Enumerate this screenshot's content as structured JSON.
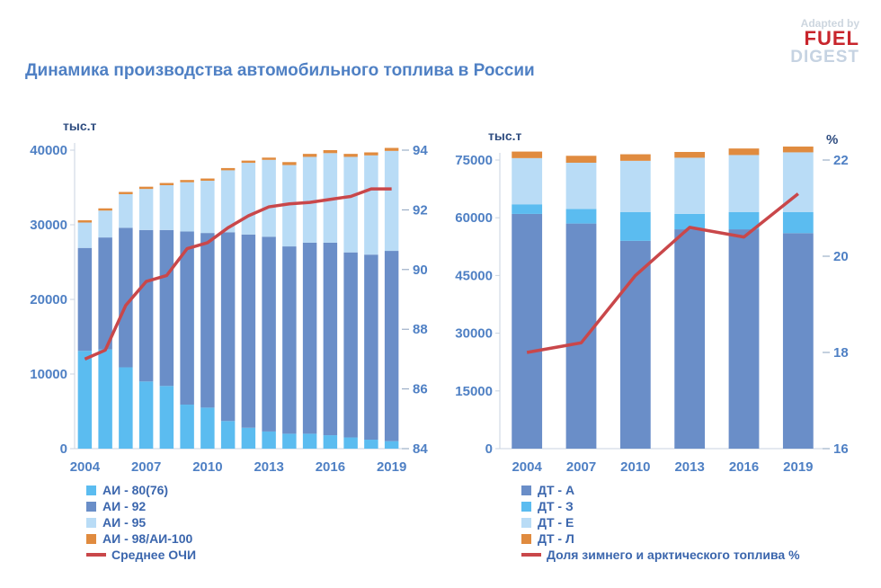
{
  "title": "Динамика производства автомобильного топлива в России",
  "logo": {
    "line1": "Adapted by",
    "line2": "FUEL",
    "line3": "DIGEST"
  },
  "colors": {
    "blue_light": "#5bbcf0",
    "blue_dark": "#6a8ec8",
    "blue_pale": "#b9dcf6",
    "orange": "#e08b3f",
    "red": "#c9474a",
    "axis_text": "#4f80c4"
  },
  "chart_data": [
    {
      "type": "bar",
      "stacked": true,
      "y_unit_label": "тыс.т",
      "categories": [
        "2004",
        "2005",
        "2006",
        "2007",
        "2008",
        "2009",
        "2010",
        "2011",
        "2012",
        "2013",
        "2014",
        "2015",
        "2016",
        "2017",
        "2018",
        "2019"
      ],
      "x_tick_labels": [
        "2004",
        "2007",
        "2010",
        "2013",
        "2016",
        "2019"
      ],
      "ylim": [
        0,
        40000
      ],
      "y_ticks": [
        0,
        10000,
        20000,
        30000,
        40000
      ],
      "y2lim": [
        84,
        94
      ],
      "y2_ticks": [
        84,
        86,
        88,
        90,
        92,
        94
      ],
      "series": [
        {
          "name": "АИ - 80(76)",
          "values": [
            13100,
            13300,
            10900,
            9000,
            8400,
            5900,
            5500,
            3700,
            2800,
            2300,
            2000,
            2000,
            1800,
            1500,
            1200,
            1000
          ]
        },
        {
          "name": "АИ - 92",
          "values": [
            13800,
            15000,
            18700,
            20300,
            20900,
            23200,
            23400,
            25300,
            25900,
            26100,
            25100,
            25600,
            25800,
            24800,
            24800,
            25500
          ]
        },
        {
          "name": "АИ - 95",
          "values": [
            3400,
            3600,
            4500,
            5500,
            6000,
            6600,
            7000,
            8300,
            9600,
            10300,
            10900,
            11500,
            12000,
            12800,
            13300,
            13400
          ]
        },
        {
          "name": "АИ - 98/АИ-100",
          "values": [
            300,
            300,
            300,
            300,
            300,
            300,
            300,
            300,
            300,
            300,
            400,
            400,
            400,
            400,
            400,
            400
          ]
        }
      ],
      "line": {
        "name": "Среднее ОЧИ",
        "axis": "secondary",
        "values": [
          87.0,
          87.3,
          88.8,
          89.6,
          89.8,
          90.7,
          90.9,
          91.4,
          91.8,
          92.1,
          92.2,
          92.25,
          92.35,
          92.45,
          92.7,
          92.7
        ]
      },
      "legend": "bottom"
    },
    {
      "type": "bar",
      "stacked": true,
      "y_unit_label": "тыс.т",
      "y2_unit_label": "%",
      "categories": [
        "2004",
        "2007",
        "2010",
        "2013",
        "2016",
        "2019"
      ],
      "ylim": [
        0,
        75000
      ],
      "y_ticks": [
        0,
        15000,
        30000,
        45000,
        60000,
        75000
      ],
      "y2lim": [
        16,
        22
      ],
      "y2_ticks": [
        16,
        18,
        20,
        22
      ],
      "series": [
        {
          "name": "ДТ - А",
          "values": [
            61000,
            58500,
            54000,
            57000,
            57000,
            56000
          ]
        },
        {
          "name": "ДТ - З",
          "values": [
            2500,
            3800,
            7500,
            4000,
            4500,
            5500
          ]
        },
        {
          "name": "ДТ - Е",
          "values": [
            12000,
            12000,
            13300,
            14600,
            14800,
            15500
          ]
        },
        {
          "name": "ДТ - Л",
          "values": [
            1700,
            1800,
            1700,
            1500,
            1700,
            1500
          ]
        }
      ],
      "line": {
        "name": "Доля зимнего и арктического топлива %",
        "axis": "secondary",
        "values": [
          18.0,
          18.2,
          19.6,
          20.6,
          20.4,
          21.3
        ]
      },
      "legend": "bottom"
    }
  ],
  "legend_left": [
    {
      "label": "АИ - 80(76)",
      "color": "#5bbcf0",
      "kind": "box"
    },
    {
      "label": "АИ - 92",
      "color": "#6a8ec8",
      "kind": "box"
    },
    {
      "label": "АИ - 95",
      "color": "#b9dcf6",
      "kind": "box"
    },
    {
      "label": "АИ - 98/АИ-100",
      "color": "#e08b3f",
      "kind": "box"
    },
    {
      "label": "Среднее ОЧИ",
      "color": "#c9474a",
      "kind": "line"
    }
  ],
  "legend_right": [
    {
      "label": "ДТ - А",
      "color": "#6a8ec8",
      "kind": "box"
    },
    {
      "label": "ДТ - З",
      "color": "#5bbcf0",
      "kind": "box"
    },
    {
      "label": "ДТ - Е",
      "color": "#b9dcf6",
      "kind": "box"
    },
    {
      "label": "ДТ - Л",
      "color": "#e08b3f",
      "kind": "box"
    },
    {
      "label": "Доля зимнего и арктического топлива %",
      "color": "#c9474a",
      "kind": "line"
    }
  ]
}
